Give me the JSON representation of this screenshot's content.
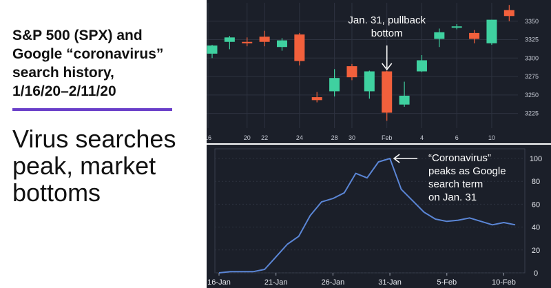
{
  "title_lines": [
    "S&P 500 (SPX) and",
    "Google “coronavirus”",
    "search history,",
    "1/16/20–2/11/20"
  ],
  "headline_lines": [
    "Virus searches",
    "peak, market",
    "bottoms"
  ],
  "colors": {
    "background": "#1b1f29",
    "panel_border": "#3a3f4d",
    "grid": "#2e3340",
    "up": "#3fd1a0",
    "down": "#f2603c",
    "line": "#5b86d6",
    "accent": "#6a3fc9"
  },
  "chart_data": [
    {
      "type": "candlestick",
      "x_tick_labels": [
        "16",
        "20",
        "22",
        "24",
        "28",
        "30",
        "Feb",
        "4",
        "6",
        "10"
      ],
      "y_ticks": [
        3225,
        3250,
        3275,
        3300,
        3325,
        3350
      ],
      "ylim": [
        3205,
        3375
      ],
      "candles": [
        {
          "open": 3306,
          "high": 3318,
          "low": 3300,
          "close": 3317
        },
        {
          "open": 3322,
          "high": 3330,
          "low": 3312,
          "close": 3328
        },
        {
          "open": 3322,
          "high": 3328,
          "low": 3316,
          "close": 3320
        },
        {
          "open": 3329,
          "high": 3337,
          "low": 3316,
          "close": 3322
        },
        {
          "open": 3315,
          "high": 3327,
          "low": 3310,
          "close": 3324
        },
        {
          "open": 3332,
          "high": 3334,
          "low": 3290,
          "close": 3296
        },
        {
          "open": 3247,
          "high": 3254,
          "low": 3240,
          "close": 3243
        },
        {
          "open": 3255,
          "high": 3285,
          "low": 3248,
          "close": 3273
        },
        {
          "open": 3289,
          "high": 3292,
          "low": 3270,
          "close": 3274
        },
        {
          "open": 3255,
          "high": 3283,
          "low": 3245,
          "close": 3282
        },
        {
          "open": 3282,
          "high": 3283,
          "low": 3215,
          "close": 3226
        },
        {
          "open": 3237,
          "high": 3268,
          "low": 3234,
          "close": 3249
        },
        {
          "open": 3282,
          "high": 3304,
          "low": 3281,
          "close": 3297
        },
        {
          "open": 3326,
          "high": 3340,
          "low": 3315,
          "close": 3335
        },
        {
          "open": 3343,
          "high": 3346,
          "low": 3339,
          "close": 3343
        },
        {
          "open": 3334,
          "high": 3338,
          "low": 3320,
          "close": 3326
        },
        {
          "open": 3320,
          "high": 3352,
          "low": 3318,
          "close": 3352
        },
        {
          "open": 3365,
          "high": 3372,
          "low": 3350,
          "close": 3357
        }
      ],
      "annotation_lines": [
        "Jan. 31, pullback",
        "bottom"
      ]
    },
    {
      "type": "line",
      "x_tick_labels": [
        "16-Jan",
        "21-Jan",
        "26-Jan",
        "31-Jan",
        "5-Feb",
        "10-Feb"
      ],
      "y_ticks": [
        0,
        20,
        40,
        60,
        80,
        100
      ],
      "ylim": [
        0,
        100
      ],
      "values": [
        0,
        1,
        1,
        1,
        3,
        14,
        25,
        32,
        50,
        62,
        65,
        70,
        87,
        83,
        97,
        100,
        73,
        63,
        53,
        47,
        45,
        46,
        48,
        45,
        42,
        44,
        42
      ],
      "annotation_lines": [
        "“Coronavirus”",
        "peaks as Google",
        "search term",
        "on Jan. 31"
      ]
    }
  ]
}
